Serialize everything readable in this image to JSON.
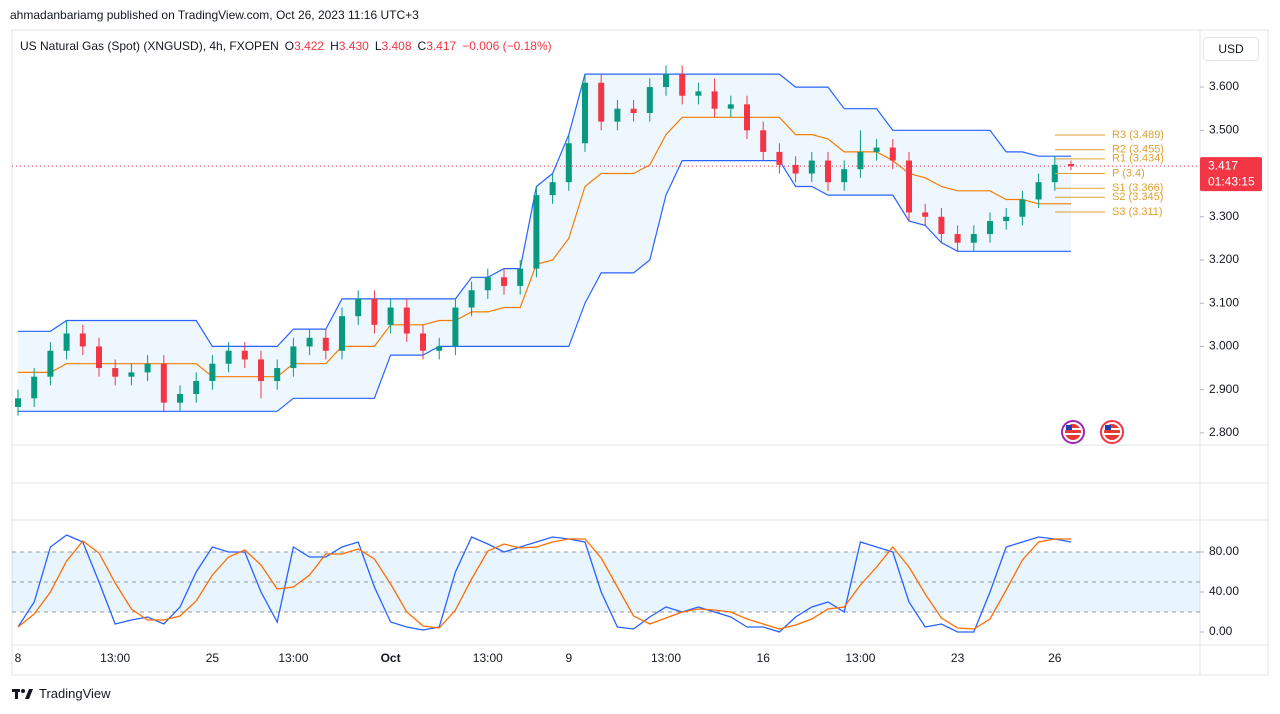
{
  "header": {
    "publisher": "ahmadanbariamg published on TradingView.com, Oct 26, 2023 11:16 UTC+3",
    "currency": "USD"
  },
  "footer": {
    "brand": "TradingView"
  },
  "chart_data": [
    {
      "type": "candlestick",
      "title": "US Natural Gas (Spot) (XNGUSD), 4h, FXOPEN",
      "ohlc_legend": [
        {
          "key": "O",
          "value": 3.422
        },
        {
          "key": "H",
          "value": 3.43,
          "label": "3.430"
        },
        {
          "key": "L",
          "value": 3.408
        },
        {
          "key": "C",
          "value": 3.417
        }
      ],
      "change": {
        "value": -0.006,
        "label": "−0.006 (−0.18%)"
      },
      "categories": [
        "8",
        null,
        null,
        null,
        null,
        null,
        "13:00",
        null,
        null,
        null,
        null,
        null,
        "25",
        null,
        null,
        null,
        null,
        "13:00",
        null,
        null,
        null,
        null,
        null,
        "Oct",
        null,
        null,
        null,
        null,
        null,
        "13:00",
        null,
        null,
        null,
        null,
        "9",
        null,
        null,
        null,
        null,
        null,
        "13:00",
        null,
        null,
        null,
        null,
        null,
        "16",
        null,
        null,
        null,
        null,
        null,
        "13:00",
        null,
        null,
        null,
        null,
        null,
        "23",
        null,
        null,
        null,
        null,
        null,
        "26",
        null
      ],
      "open": [
        2.86,
        2.88,
        2.93,
        2.99,
        3.03,
        3.0,
        2.95,
        2.93,
        2.94,
        2.96,
        2.87,
        2.89,
        2.92,
        2.96,
        2.99,
        2.97,
        2.92,
        2.95,
        3.0,
        3.02,
        2.99,
        3.07,
        3.11,
        3.05,
        3.09,
        3.03,
        2.99,
        3.0,
        3.09,
        3.13,
        3.16,
        3.14,
        3.18,
        3.35,
        3.38,
        3.47,
        3.61,
        3.52,
        3.55,
        3.54,
        3.6,
        3.63,
        3.58,
        3.59,
        3.55,
        3.56,
        3.5,
        3.45,
        3.42,
        3.4,
        3.43,
        3.38,
        3.41,
        3.45,
        3.46,
        3.43,
        3.31,
        3.3,
        3.26,
        3.24,
        3.26,
        3.29,
        3.3,
        3.34,
        3.38,
        3.422
      ],
      "high": [
        2.9,
        2.95,
        3.01,
        3.06,
        3.05,
        3.02,
        2.97,
        2.96,
        2.98,
        2.98,
        2.91,
        2.94,
        2.98,
        3.01,
        3.01,
        2.99,
        2.97,
        3.02,
        3.04,
        3.04,
        3.09,
        3.13,
        3.13,
        3.11,
        3.11,
        3.05,
        3.02,
        3.11,
        3.15,
        3.18,
        3.18,
        3.2,
        3.37,
        3.4,
        3.49,
        3.63,
        3.63,
        3.57,
        3.57,
        3.62,
        3.65,
        3.65,
        3.61,
        3.62,
        3.58,
        3.58,
        3.52,
        3.47,
        3.44,
        3.45,
        3.45,
        3.43,
        3.5,
        3.48,
        3.48,
        3.45,
        3.33,
        3.32,
        3.28,
        3.28,
        3.31,
        3.32,
        3.36,
        3.4,
        3.44,
        3.43
      ],
      "low": [
        2.84,
        2.86,
        2.91,
        2.97,
        2.98,
        2.93,
        2.91,
        2.91,
        2.92,
        2.85,
        2.85,
        2.87,
        2.9,
        2.94,
        2.95,
        2.88,
        2.9,
        2.93,
        2.98,
        2.97,
        2.97,
        3.05,
        3.03,
        3.03,
        3.01,
        2.97,
        2.97,
        2.98,
        3.07,
        3.11,
        3.12,
        3.12,
        3.16,
        3.33,
        3.36,
        3.45,
        3.5,
        3.5,
        3.52,
        3.52,
        3.58,
        3.56,
        3.56,
        3.53,
        3.53,
        3.48,
        3.43,
        3.4,
        3.38,
        3.38,
        3.36,
        3.36,
        3.39,
        3.43,
        3.41,
        3.29,
        3.28,
        3.24,
        3.22,
        3.22,
        3.24,
        3.27,
        3.28,
        3.32,
        3.36,
        3.408
      ],
      "close": [
        2.88,
        2.93,
        2.99,
        3.03,
        3.0,
        2.95,
        2.93,
        2.94,
        2.96,
        2.87,
        2.89,
        2.92,
        2.96,
        2.99,
        2.97,
        2.92,
        2.95,
        3.0,
        3.02,
        2.99,
        3.07,
        3.11,
        3.05,
        3.09,
        3.03,
        2.99,
        3.0,
        3.09,
        3.13,
        3.16,
        3.14,
        3.18,
        3.35,
        3.38,
        3.47,
        3.61,
        3.52,
        3.55,
        3.54,
        3.6,
        3.63,
        3.58,
        3.59,
        3.55,
        3.56,
        3.5,
        3.45,
        3.42,
        3.4,
        3.43,
        3.38,
        3.41,
        3.45,
        3.46,
        3.43,
        3.31,
        3.3,
        3.26,
        3.24,
        3.26,
        3.29,
        3.3,
        3.34,
        3.38,
        3.42,
        3.417
      ],
      "up_color": "#089981",
      "down_color": "#f23645",
      "channel": {
        "upper": [
          3.035,
          3.035,
          3.035,
          3.06,
          3.06,
          3.06,
          3.06,
          3.06,
          3.06,
          3.06,
          3.06,
          3.06,
          3.0,
          3.0,
          3.0,
          3.0,
          3.0,
          3.04,
          3.04,
          3.04,
          3.11,
          3.11,
          3.11,
          3.11,
          3.11,
          3.11,
          3.11,
          3.11,
          3.16,
          3.16,
          3.18,
          3.18,
          3.37,
          3.4,
          3.49,
          3.63,
          3.63,
          3.63,
          3.63,
          3.63,
          3.63,
          3.63,
          3.63,
          3.63,
          3.63,
          3.63,
          3.63,
          3.63,
          3.6,
          3.6,
          3.6,
          3.55,
          3.55,
          3.55,
          3.5,
          3.5,
          3.5,
          3.5,
          3.5,
          3.5,
          3.5,
          3.45,
          3.45,
          3.44,
          3.44,
          3.44
        ],
        "lower": [
          2.85,
          2.85,
          2.85,
          2.85,
          2.85,
          2.85,
          2.85,
          2.85,
          2.85,
          2.85,
          2.85,
          2.85,
          2.85,
          2.85,
          2.85,
          2.85,
          2.85,
          2.88,
          2.88,
          2.88,
          2.88,
          2.88,
          2.88,
          2.98,
          2.98,
          2.98,
          3.0,
          3.0,
          3.0,
          3.0,
          3.0,
          3.0,
          3.0,
          3.0,
          3.0,
          3.1,
          3.17,
          3.17,
          3.17,
          3.2,
          3.35,
          3.43,
          3.43,
          3.43,
          3.43,
          3.43,
          3.43,
          3.43,
          3.37,
          3.37,
          3.35,
          3.35,
          3.35,
          3.35,
          3.35,
          3.29,
          3.28,
          3.24,
          3.22,
          3.22,
          3.22,
          3.22,
          3.22,
          3.22,
          3.22,
          3.22
        ],
        "basis": [
          2.94,
          2.94,
          2.94,
          2.96,
          2.96,
          2.96,
          2.96,
          2.96,
          2.96,
          2.96,
          2.96,
          2.96,
          2.93,
          2.93,
          2.93,
          2.93,
          2.93,
          2.96,
          2.96,
          2.96,
          3.0,
          3.0,
          3.0,
          3.05,
          3.05,
          3.05,
          3.06,
          3.06,
          3.08,
          3.08,
          3.09,
          3.09,
          3.19,
          3.2,
          3.25,
          3.37,
          3.4,
          3.4,
          3.4,
          3.42,
          3.49,
          3.53,
          3.53,
          3.53,
          3.53,
          3.53,
          3.53,
          3.53,
          3.49,
          3.49,
          3.48,
          3.45,
          3.45,
          3.45,
          3.43,
          3.4,
          3.39,
          3.37,
          3.36,
          3.36,
          3.36,
          3.34,
          3.34,
          3.33,
          3.33,
          3.33
        ],
        "color": "#2962ff",
        "basis_color": "#f57c00",
        "fill": "#2196f3"
      },
      "pivots": [
        {
          "value": 3.489,
          "label": "R3 (3.489)"
        },
        {
          "value": 3.455,
          "label": "R2 (3.455)"
        },
        {
          "value": 3.434,
          "label": "R1 (3.434)"
        },
        {
          "value": 3.4,
          "label": "P (3.4)"
        },
        {
          "value": 3.366,
          "label": "S1 (3.366)"
        },
        {
          "value": 3.345,
          "label": "S2 (3.345)"
        },
        {
          "value": 3.311,
          "label": "S3 (3.311)"
        }
      ],
      "pivot_color": "#e0a030",
      "last_price": {
        "value": 3.417,
        "countdown": "01:43:15",
        "color": "#f23645"
      },
      "ylim": [
        2.772,
        3.732
      ],
      "yticks": [
        {
          "value": 2.8,
          "label": "2.800"
        },
        {
          "value": 2.9,
          "label": "2.900"
        },
        {
          "value": 3.0,
          "label": "3.000"
        },
        {
          "value": 3.1,
          "label": "3.100"
        },
        {
          "value": 3.2,
          "label": "3.200"
        },
        {
          "value": 3.3,
          "label": "3.300"
        },
        {
          "value": 3.4,
          "label": "3.400"
        },
        {
          "value": 3.5,
          "label": "3.500"
        },
        {
          "value": 3.6,
          "label": "3.600"
        }
      ]
    },
    {
      "type": "line",
      "series": [
        {
          "color": "#2962ff",
          "values": [
            5,
            30,
            85,
            97,
            90,
            50,
            8,
            12,
            15,
            8,
            25,
            60,
            85,
            80,
            80,
            40,
            10,
            85,
            75,
            75,
            85,
            90,
            45,
            10,
            5,
            2,
            5,
            60,
            95,
            88,
            80,
            85,
            90,
            95,
            93,
            90,
            40,
            5,
            3,
            15,
            25,
            20,
            25,
            20,
            15,
            5,
            5,
            0,
            15,
            25,
            30,
            20,
            90,
            85,
            80,
            30,
            5,
            8,
            0,
            0,
            40,
            85,
            90,
            95,
            93,
            90
          ]
        },
        {
          "color": "#ff6d00",
          "values": [
            5,
            18,
            40,
            71,
            91,
            79,
            49,
            23,
            12,
            12,
            16,
            31,
            57,
            75,
            82,
            67,
            43,
            45,
            57,
            78,
            78,
            83,
            73,
            48,
            20,
            6,
            4,
            22,
            53,
            81,
            88,
            84,
            85,
            90,
            93,
            93,
            74,
            45,
            16,
            8,
            14,
            20,
            23,
            22,
            20,
            13,
            8,
            3,
            7,
            13,
            23,
            25,
            47,
            65,
            85,
            65,
            38,
            14,
            4,
            3,
            13,
            42,
            72,
            90,
            93,
            93
          ]
        }
      ],
      "band_levels": [
        20,
        50,
        80
      ],
      "band_color": "#2196f3",
      "ylim": [
        -13,
        112
      ],
      "yticks": [
        {
          "value": 80,
          "label": "80.00"
        },
        {
          "value": 40,
          "label": "40.00"
        },
        {
          "value": 0,
          "label": "0.00"
        }
      ]
    }
  ]
}
